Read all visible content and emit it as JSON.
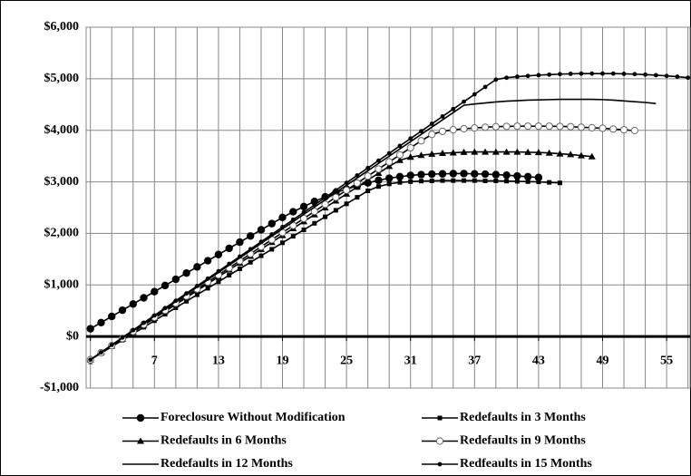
{
  "chart_data": {
    "type": "line",
    "x": [
      1,
      2,
      3,
      4,
      5,
      6,
      7,
      8,
      9,
      10,
      11,
      12,
      13,
      14,
      15,
      16,
      17,
      18,
      19,
      20,
      21,
      22,
      23,
      24,
      25,
      26,
      27,
      28,
      29,
      30,
      31,
      32,
      33,
      34,
      35,
      36,
      37,
      38,
      39,
      40,
      41,
      42,
      43,
      44,
      45,
      46,
      47,
      48,
      49,
      50,
      51,
      52,
      53,
      54,
      55,
      56,
      57
    ],
    "xlim": [
      0.6,
      57.2
    ],
    "xticks": [
      1,
      7,
      13,
      19,
      25,
      31,
      37,
      43,
      49,
      55
    ],
    "ylim": [
      -1000,
      6000
    ],
    "yticks": [
      {
        "value": -1000,
        "label": "-$1,000"
      },
      {
        "value": 0,
        "label": "$0"
      },
      {
        "value": 1000,
        "label": "$1,000"
      },
      {
        "value": 2000,
        "label": "$2,000"
      },
      {
        "value": 3000,
        "label": "$3,000"
      },
      {
        "value": 4000,
        "label": "$4,000"
      },
      {
        "value": 5000,
        "label": "$5,000"
      },
      {
        "value": 6000,
        "label": "$6,000"
      }
    ],
    "grid": true,
    "series": [
      {
        "name": "Foreclosure Without Modification",
        "color": "#000000",
        "marker": "circle",
        "values": [
          150,
          270,
          390,
          510,
          630,
          750,
          870,
          990,
          1110,
          1230,
          1350,
          1470,
          1590,
          1710,
          1830,
          1950,
          2070,
          2190,
          2310,
          2420,
          2520,
          2620,
          2710,
          2790,
          2860,
          2920,
          2980,
          3030,
          3070,
          3100,
          3125,
          3140,
          3150,
          3155,
          3160,
          3160,
          3155,
          3150,
          3140,
          3130,
          3115,
          3100,
          3085,
          null,
          null,
          null,
          null,
          null,
          null,
          null,
          null,
          null,
          null,
          null,
          null,
          null,
          null
        ]
      },
      {
        "name": "Redefaults in 3 Months",
        "color": "#000000",
        "marker": "square",
        "values": [
          -450,
          -324,
          -198,
          -72,
          54,
          180,
          306,
          432,
          558,
          684,
          810,
          936,
          1062,
          1188,
          1314,
          1440,
          1566,
          1692,
          1818,
          1944,
          2070,
          2196,
          2322,
          2448,
          2574,
          2700,
          2826,
          2910,
          2960,
          2990,
          3005,
          3015,
          3020,
          3025,
          3025,
          3025,
          3025,
          3020,
          3020,
          3015,
          3010,
          3005,
          3000,
          2990,
          2980,
          null,
          null,
          null,
          null,
          null,
          null,
          null,
          null,
          null,
          null,
          null,
          null
        ]
      },
      {
        "name": "Redefaults in 6 Months",
        "color": "#000000",
        "marker": "triangle",
        "values": [
          -450,
          -316,
          -182,
          -48,
          86,
          220,
          354,
          488,
          622,
          756,
          890,
          1024,
          1158,
          1292,
          1426,
          1560,
          1694,
          1828,
          1962,
          2096,
          2230,
          2364,
          2498,
          2632,
          2766,
          2900,
          3034,
          3168,
          3302,
          3420,
          3480,
          3515,
          3540,
          3555,
          3565,
          3575,
          3580,
          3580,
          3580,
          3580,
          3580,
          3575,
          3570,
          3560,
          3545,
          3530,
          3510,
          3490,
          null,
          null,
          null,
          null,
          null,
          null,
          null,
          null,
          null
        ]
      },
      {
        "name": "Redefaults in 9 Months",
        "color": "#000000",
        "marker": "open-circle",
        "values": [
          -450,
          -313,
          -176,
          -39,
          98,
          235,
          372,
          509,
          646,
          783,
          920,
          1057,
          1194,
          1331,
          1468,
          1605,
          1742,
          1879,
          2016,
          2153,
          2290,
          2427,
          2564,
          2701,
          2838,
          2975,
          3112,
          3249,
          3386,
          3523,
          3660,
          3797,
          3920,
          3980,
          4010,
          4030,
          4045,
          4060,
          4070,
          4075,
          4080,
          4080,
          4080,
          4080,
          4075,
          4070,
          4060,
          4050,
          4040,
          4025,
          4010,
          3995,
          null,
          null,
          null,
          null,
          null
        ]
      },
      {
        "name": "Redefaults in 12 Months",
        "color": "#000000",
        "marker": "none",
        "values": [
          -450,
          -309,
          -168,
          -27,
          114,
          255,
          396,
          537,
          678,
          819,
          960,
          1101,
          1242,
          1383,
          1524,
          1665,
          1806,
          1947,
          2088,
          2229,
          2370,
          2511,
          2652,
          2793,
          2934,
          3075,
          3216,
          3357,
          3498,
          3639,
          3780,
          3921,
          4062,
          4203,
          4344,
          4485,
          4510,
          4530,
          4550,
          4565,
          4575,
          4585,
          4590,
          4595,
          4600,
          4600,
          4600,
          4600,
          4595,
          4585,
          4570,
          4555,
          4540,
          4520,
          null,
          null,
          null
        ]
      },
      {
        "name": "Redfeaults in 15 Months",
        "color": "#000000",
        "marker": "dot",
        "values": [
          -450,
          -307,
          -164,
          -21,
          122,
          265,
          408,
          551,
          694,
          837,
          980,
          1123,
          1266,
          1409,
          1552,
          1695,
          1838,
          1981,
          2124,
          2267,
          2410,
          2553,
          2696,
          2839,
          2982,
          3125,
          3268,
          3411,
          3554,
          3697,
          3840,
          3983,
          4126,
          4269,
          4412,
          4555,
          4698,
          4841,
          4984,
          5020,
          5040,
          5055,
          5070,
          5080,
          5090,
          5095,
          5100,
          5100,
          5100,
          5100,
          5095,
          5090,
          5080,
          5070,
          5055,
          5040,
          5020
        ]
      }
    ]
  }
}
